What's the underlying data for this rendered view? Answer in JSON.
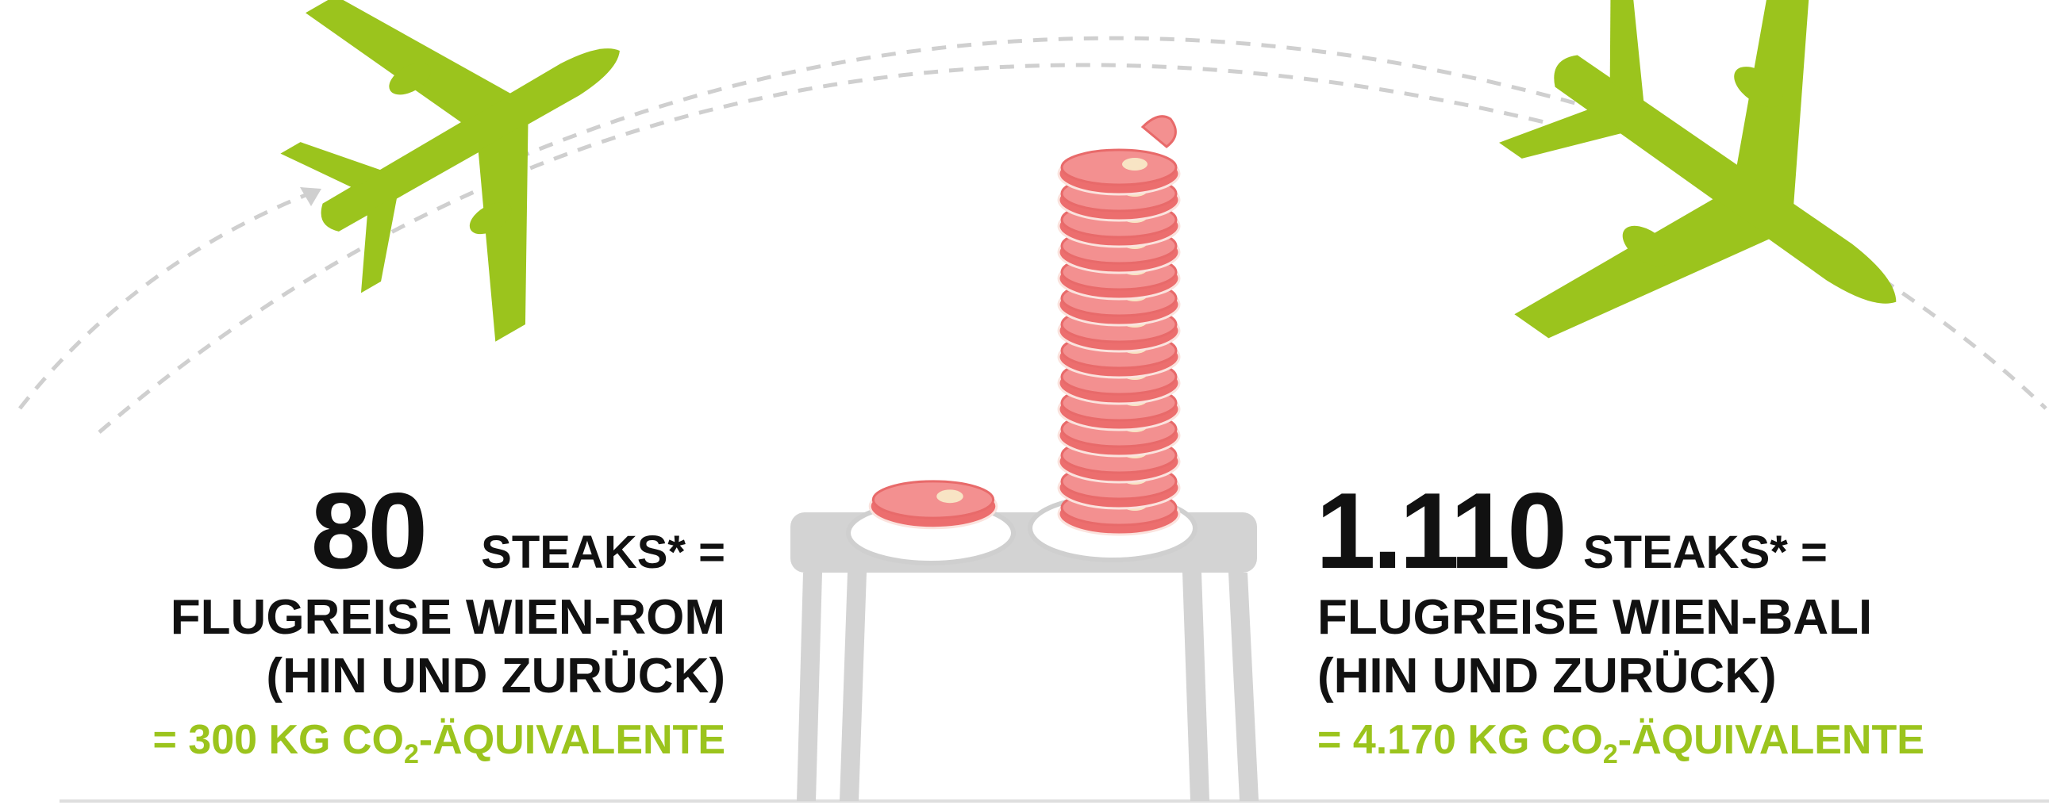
{
  "left": {
    "count": "80",
    "unit": "STEAKS* =",
    "route": "FLUGREISE WIEN-ROM",
    "note": "(HIN UND ZURÜCK)",
    "emission": "= 300 KG CO",
    "subscript": "2",
    "emission_suffix": "-ÄQUIVALENTE"
  },
  "right": {
    "count": "1.110",
    "unit": "STEAKS* =",
    "route": "FLUGREISE WIEN-BALI",
    "note": "(HIN UND ZURÜCK)",
    "emission": "= 4.170 KG CO",
    "subscript": "2",
    "emission_suffix": "-ÄQUIVALENTE"
  }
}
